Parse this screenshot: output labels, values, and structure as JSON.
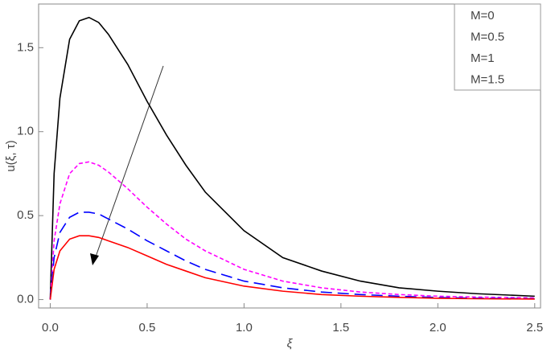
{
  "chart_data": {
    "type": "line",
    "x_label": "ξ",
    "y_label": "u(ξ, τ)",
    "x": [
      0,
      0.02,
      0.05,
      0.1,
      0.15,
      0.2,
      0.25,
      0.3,
      0.4,
      0.5,
      0.6,
      0.7,
      0.8,
      1.0,
      1.2,
      1.4,
      1.6,
      1.8,
      2.0,
      2.2,
      2.5
    ],
    "series": [
      {
        "name": "M=0",
        "color": "#000000",
        "dash": "solid",
        "values": [
          0,
          0.75,
          1.2,
          1.55,
          1.66,
          1.68,
          1.65,
          1.58,
          1.4,
          1.18,
          0.98,
          0.8,
          0.64,
          0.41,
          0.25,
          0.17,
          0.11,
          0.07,
          0.05,
          0.035,
          0.02
        ]
      },
      {
        "name": "M=0.5",
        "color": "#ff00ff",
        "dash": "short",
        "values": [
          0,
          0.35,
          0.57,
          0.75,
          0.81,
          0.82,
          0.8,
          0.76,
          0.66,
          0.55,
          0.45,
          0.36,
          0.29,
          0.18,
          0.11,
          0.07,
          0.045,
          0.03,
          0.02,
          0.015,
          0.01
        ]
      },
      {
        "name": "M=1",
        "color": "#0000ff",
        "dash": "long",
        "values": [
          0,
          0.25,
          0.4,
          0.49,
          0.52,
          0.52,
          0.51,
          0.48,
          0.42,
          0.35,
          0.29,
          0.23,
          0.18,
          0.11,
          0.07,
          0.045,
          0.03,
          0.02,
          0.012,
          0.008,
          0.005
        ]
      },
      {
        "name": "M=1.5",
        "color": "#ff0000",
        "dash": "solid",
        "values": [
          0,
          0.18,
          0.29,
          0.36,
          0.38,
          0.38,
          0.37,
          0.35,
          0.31,
          0.26,
          0.21,
          0.17,
          0.13,
          0.08,
          0.05,
          0.03,
          0.02,
          0.013,
          0.008,
          0.005,
          0.003
        ]
      }
    ],
    "xlim": [
      -0.06,
      2.53
    ],
    "ylim": [
      -0.05,
      1.76
    ],
    "xticks": [
      {
        "value": 0,
        "label": "0.0"
      },
      0.5,
      {
        "value": 1,
        "label": "1.0"
      },
      1.5,
      {
        "value": 2,
        "label": "2.0"
      },
      2.5
    ],
    "yticks": [
      {
        "value": 0,
        "label": "0.0"
      },
      0.5,
      {
        "value": 1,
        "label": "1.0"
      },
      1.5
    ],
    "legend": "upper-right"
  }
}
